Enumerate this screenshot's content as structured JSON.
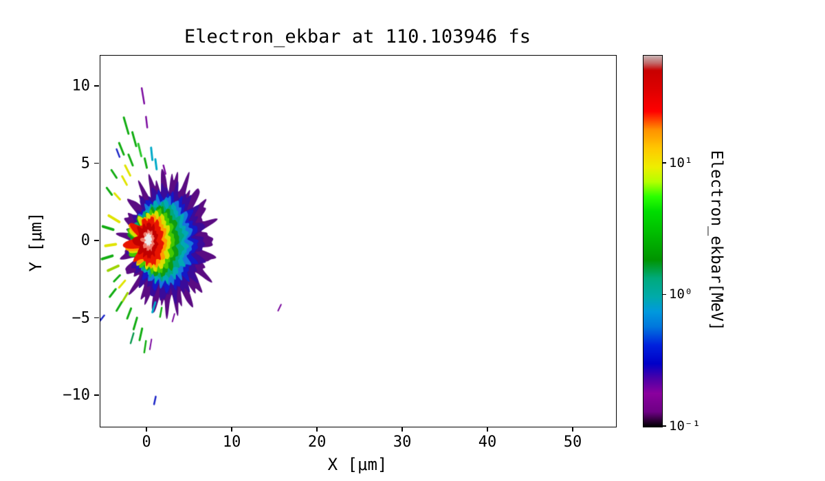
{
  "chart": {
    "title": "Electron_ekbar at 110.103946 fs",
    "xlabel": "X [μm]",
    "ylabel": "Y [μm]",
    "colorbar_label": "Electron_ekbar[MeV]"
  },
  "chart_data": {
    "type": "heatmap",
    "title": "Electron_ekbar at 110.103946 fs",
    "quantity": "Electron_ekbar",
    "time_fs": 110.103946,
    "xlabel": "X [μm]",
    "ylabel": "Y [μm]",
    "xlim": [
      -5.5,
      55
    ],
    "ylim": [
      -12,
      12
    ],
    "x_ticks": [
      {
        "value": 0,
        "label": "0"
      },
      {
        "value": 10,
        "label": "10"
      },
      {
        "value": 20,
        "label": "20"
      },
      {
        "value": 30,
        "label": "30"
      },
      {
        "value": 40,
        "label": "40"
      },
      {
        "value": 50,
        "label": "50"
      }
    ],
    "y_ticks": [
      {
        "value": -10,
        "label": "−10"
      },
      {
        "value": -5,
        "label": "−5"
      },
      {
        "value": 0,
        "label": "0"
      },
      {
        "value": 5,
        "label": "5"
      },
      {
        "value": 10,
        "label": "10"
      }
    ],
    "colorbar": {
      "label": "Electron_ekbar[MeV]",
      "scale": "log",
      "range": [
        0.1,
        66
      ],
      "colormap": "nipy_spectral",
      "ticks": [
        {
          "value": 0.1,
          "label": "10⁻¹"
        },
        {
          "value": 1,
          "label": "10⁰"
        },
        {
          "value": 10,
          "label": "10¹"
        }
      ],
      "stops": [
        {
          "pos": 0,
          "color": "#000000"
        },
        {
          "pos": 4,
          "color": "#6e0085"
        },
        {
          "pos": 9,
          "color": "#8a009e"
        },
        {
          "pos": 13,
          "color": "#4b00a8"
        },
        {
          "pos": 17,
          "color": "#0000c8"
        },
        {
          "pos": 22,
          "color": "#0022dd"
        },
        {
          "pos": 27,
          "color": "#0077dd"
        },
        {
          "pos": 31,
          "color": "#0099dd"
        },
        {
          "pos": 35,
          "color": "#00aaaa"
        },
        {
          "pos": 40,
          "color": "#00aa7c"
        },
        {
          "pos": 45,
          "color": "#009400"
        },
        {
          "pos": 52,
          "color": "#00bb00"
        },
        {
          "pos": 58,
          "color": "#00dd00"
        },
        {
          "pos": 62,
          "color": "#2aff00"
        },
        {
          "pos": 66,
          "color": "#b4ff00"
        },
        {
          "pos": 70,
          "color": "#eeee00"
        },
        {
          "pos": 75,
          "color": "#ffc800"
        },
        {
          "pos": 80,
          "color": "#ff9100"
        },
        {
          "pos": 85,
          "color": "#ff0000"
        },
        {
          "pos": 91,
          "color": "#dd0000"
        },
        {
          "pos": 96,
          "color": "#c80000"
        },
        {
          "pos": 98,
          "color": "#c26a6a"
        },
        {
          "pos": 100,
          "color": "#c8b4b4"
        }
      ]
    },
    "description": "2D pseudocolor map (log scale) of electron mean kinetic energy. Hot core near (0,0) reaching tens of MeV (white/red), surrounded by nested shells cooling outward (orange, yellow, green, cyan, blue) to a spiky purple fringe (~0.2 MeV) extending to x≈7.5, y≈±4.7. Flame-like red/yellow/green wisps blow off to the left, and many thin debris streaks radiate between y≈−11 and y≈+10; an isolated purple speck sits near (15.5,−4.3).",
    "contours": [
      {
        "value_MeV": 0.18,
        "color": "#5a0b82",
        "cx": 2.4,
        "cy": -0.1,
        "rx": 4.9,
        "ry": 4.1,
        "amp": 0.26,
        "f1": 23,
        "f2": 37,
        "f3": 53,
        "phase": 0.7,
        "left": 0,
        "lf": 21
      },
      {
        "value_MeV": 0.35,
        "color": "#3a0b9a",
        "cx": 2.3,
        "cy": -0.1,
        "rx": 4.15,
        "ry": 3.45,
        "amp": 0.2,
        "f1": 19,
        "f2": 31,
        "f3": 47,
        "phase": 1.9,
        "left": 0,
        "lf": 21
      },
      {
        "value_MeV": 0.5,
        "color": "#1418c8",
        "cx": 2.15,
        "cy": -0.05,
        "rx": 3.6,
        "ry": 3.0,
        "amp": 0.17,
        "f1": 17,
        "f2": 29,
        "f3": 43,
        "phase": 2.8,
        "left": 0,
        "lf": 19
      },
      {
        "value_MeV": 0.8,
        "color": "#1478dc",
        "cx": 2.0,
        "cy": 0,
        "rx": 3.15,
        "ry": 2.75,
        "amp": 0.15,
        "f1": 16,
        "f2": 27,
        "f3": 41,
        "phase": 3.6,
        "left": 0.15,
        "lf": 19
      },
      {
        "value_MeV": 1.2,
        "color": "#00a8b4",
        "cx": 1.85,
        "cy": 0,
        "rx": 2.8,
        "ry": 2.55,
        "amp": 0.14,
        "f1": 15,
        "f2": 25,
        "f3": 39,
        "phase": 4.4,
        "left": 0.3,
        "lf": 19
      },
      {
        "value_MeV": 2,
        "color": "#00a87e",
        "cx": 1.65,
        "cy": 0,
        "rx": 2.5,
        "ry": 2.35,
        "amp": 0.13,
        "f1": 14,
        "f2": 23,
        "f3": 37,
        "phase": 5.1,
        "left": 0.5,
        "lf": 17
      },
      {
        "value_MeV": 3,
        "color": "#0f9c0f",
        "cx": 1.45,
        "cy": 0,
        "rx": 2.2,
        "ry": 2.2,
        "amp": 0.13,
        "f1": 13,
        "f2": 22,
        "f3": 35,
        "phase": 0.4,
        "left": 0.7,
        "lf": 17
      },
      {
        "value_MeV": 5,
        "color": "#45c800",
        "cx": 1.2,
        "cy": 0,
        "rx": 1.95,
        "ry": 2.0,
        "amp": 0.13,
        "f1": 13,
        "f2": 21,
        "f3": 33,
        "phase": 1.2,
        "left": 0.85,
        "lf": 15
      },
      {
        "value_MeV": 8,
        "color": "#d8e000",
        "cx": 0.95,
        "cy": 0,
        "rx": 1.75,
        "ry": 1.85,
        "amp": 0.14,
        "f1": 12,
        "f2": 19,
        "f3": 31,
        "phase": 2.0,
        "left": 1.0,
        "lf": 15
      },
      {
        "value_MeV": 14,
        "color": "#ff9c00",
        "cx": 0.7,
        "cy": 0,
        "rx": 1.55,
        "ry": 1.65,
        "amp": 0.14,
        "f1": 11,
        "f2": 18,
        "f3": 29,
        "phase": 2.9,
        "left": 1.1,
        "lf": 13
      },
      {
        "value_MeV": 25,
        "color": "#e81400",
        "cx": 0.45,
        "cy": 0,
        "rx": 1.4,
        "ry": 1.5,
        "amp": 0.15,
        "f1": 11,
        "f2": 17,
        "f3": 27,
        "phase": 3.7,
        "left": 1.25,
        "lf": 13
      },
      {
        "value_MeV": 35,
        "color": "#c00000",
        "cx": 0.2,
        "cy": 0.05,
        "rx": 1.0,
        "ry": 1.1,
        "amp": 0.18,
        "f1": 10,
        "f2": 16,
        "f3": 25,
        "phase": 4.5,
        "left": 1.1,
        "lf": 11
      },
      {
        "value_MeV": 45,
        "color": "#f07868",
        "cx": 0.2,
        "cy": 0.05,
        "rx": 0.6,
        "ry": 0.65,
        "amp": 0.2,
        "f1": 9,
        "f2": 15,
        "f3": 23,
        "phase": 5.2,
        "left": 0.6,
        "lf": 11
      },
      {
        "value_MeV": 60,
        "color": "#ececec",
        "cx": 0.15,
        "cy": 0.1,
        "rx": 0.38,
        "ry": 0.4,
        "amp": 0.25,
        "f1": 9,
        "f2": 14,
        "f3": 21,
        "phase": 0.9,
        "left": 0.3,
        "lf": 9
      }
    ],
    "streak_format": [
      "x1",
      "y1",
      "x2",
      "y2",
      "width_px",
      "color"
    ],
    "streaks": [
      [
        -0.65,
        9.9,
        -0.35,
        8.9,
        2.5,
        "#7c0ca0"
      ],
      [
        -0.15,
        8.05,
        0.0,
        7.35,
        2.5,
        "#7c0ca0"
      ],
      [
        -2.75,
        8.0,
        -2.2,
        6.95,
        3,
        "#12ad12"
      ],
      [
        -1.75,
        7.05,
        -1.3,
        6.15,
        3,
        "#12ad12"
      ],
      [
        -3.3,
        6.35,
        -2.75,
        5.6,
        3,
        "#12ad12"
      ],
      [
        -1.05,
        6.3,
        -0.7,
        5.5,
        3,
        "#28c828"
      ],
      [
        0.45,
        6.05,
        0.6,
        5.25,
        3,
        "#00aac8"
      ],
      [
        -2.2,
        5.6,
        -1.7,
        4.9,
        3,
        "#12ad12"
      ],
      [
        -3.6,
        5.95,
        -3.25,
        5.45,
        2.5,
        "#1e28c8"
      ],
      [
        -0.3,
        5.35,
        -0.05,
        4.75,
        3,
        "#12ad12"
      ],
      [
        -2.6,
        4.9,
        -2.0,
        4.25,
        3,
        "#e0e400"
      ],
      [
        -4.2,
        4.6,
        -3.6,
        4.1,
        3,
        "#12ad12"
      ],
      [
        -2.95,
        4.2,
        -2.4,
        3.65,
        3,
        "#e0e400"
      ],
      [
        -4.75,
        3.45,
        -4.15,
        3.0,
        3,
        "#12ad12"
      ],
      [
        -3.85,
        3.1,
        -3.2,
        2.7,
        3,
        "#e0e400"
      ],
      [
        0.95,
        5.3,
        1.1,
        4.65,
        3,
        "#00aac8"
      ],
      [
        1.9,
        4.9,
        2.15,
        4.35,
        2.5,
        "#7c0ca0"
      ],
      [
        -4.5,
        1.65,
        -3.3,
        1.25,
        4,
        "#e0e400"
      ],
      [
        -5.2,
        0.95,
        -4.0,
        0.75,
        4,
        "#12ad12"
      ],
      [
        -4.9,
        -0.3,
        -3.7,
        -0.2,
        4,
        "#e0e400"
      ],
      [
        -5.3,
        -1.15,
        -4.1,
        -0.95,
        4,
        "#12ad12"
      ],
      [
        -4.6,
        -1.9,
        -3.4,
        -1.6,
        4,
        "#9cd400"
      ],
      [
        -3.9,
        -2.6,
        -3.2,
        -2.2,
        3,
        "#12ad12"
      ],
      [
        -3.3,
        -3.0,
        -2.6,
        -2.55,
        3,
        "#e0e400"
      ],
      [
        -4.4,
        -3.6,
        -3.7,
        -3.1,
        3,
        "#12ad12"
      ],
      [
        -2.9,
        -3.9,
        -2.3,
        -3.35,
        3,
        "#9cd400"
      ],
      [
        -3.6,
        -4.5,
        -3.0,
        -3.95,
        3,
        "#12ad12"
      ],
      [
        -2.35,
        -5.0,
        -1.9,
        -4.35,
        3,
        "#12ad12"
      ],
      [
        0.6,
        -4.6,
        0.95,
        -3.95,
        3,
        "#00aac8"
      ],
      [
        1.5,
        -4.9,
        1.7,
        -4.3,
        2.5,
        "#12ad12"
      ],
      [
        -1.6,
        -5.7,
        -1.2,
        -4.95,
        3,
        "#12ad12"
      ],
      [
        -5.55,
        -5.15,
        -5.05,
        -4.8,
        2.5,
        "#1e28c8"
      ],
      [
        -0.9,
        -6.4,
        -0.6,
        -5.65,
        3,
        "#12ad12"
      ],
      [
        -1.95,
        -6.6,
        -1.6,
        -5.95,
        2.5,
        "#0a9a50"
      ],
      [
        -0.35,
        -7.2,
        -0.15,
        -6.45,
        2.5,
        "#12ad12"
      ],
      [
        0.3,
        -7.0,
        0.5,
        -6.35,
        2,
        "#7c0ca0"
      ],
      [
        0.8,
        -10.55,
        1.0,
        -10.05,
        2.5,
        "#1e28c8"
      ],
      [
        2.95,
        -5.2,
        3.2,
        -4.7,
        2,
        "#7c0ca0"
      ],
      [
        15.35,
        -4.5,
        15.7,
        -4.1,
        2,
        "#7c0ca0"
      ]
    ]
  }
}
